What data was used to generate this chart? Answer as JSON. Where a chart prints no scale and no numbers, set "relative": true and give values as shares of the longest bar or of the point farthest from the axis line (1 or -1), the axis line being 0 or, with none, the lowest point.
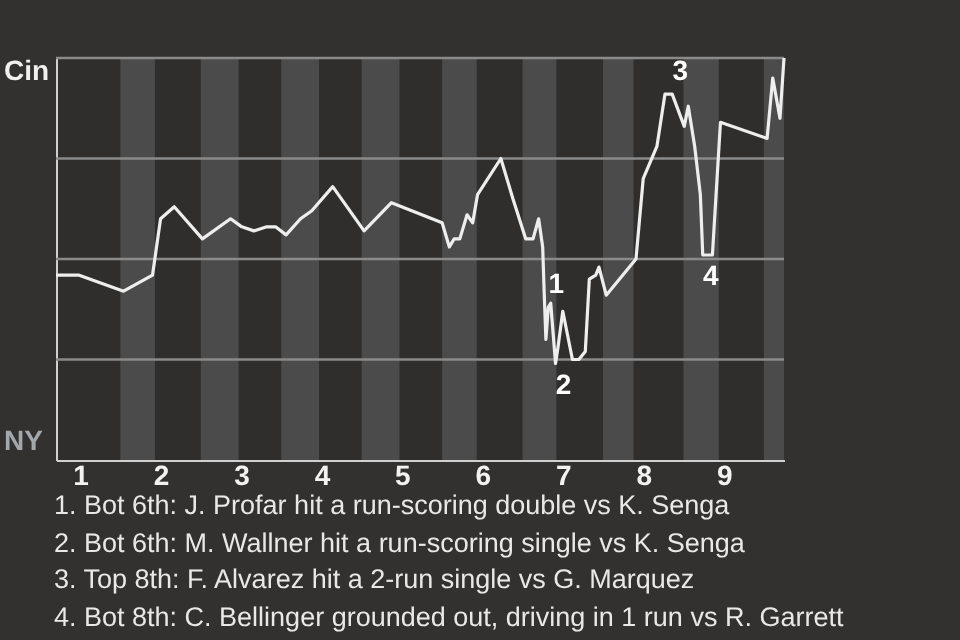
{
  "chart_data": {
    "type": "line",
    "relative": true,
    "x": [
      0.7,
      0.98,
      1.54,
      1.9,
      2.0,
      2.17,
      2.52,
      2.87,
      3.01,
      3.16,
      3.32,
      3.43,
      3.56,
      3.74,
      3.88,
      4.14,
      4.53,
      4.87,
      5.5,
      5.59,
      5.65,
      5.72,
      5.81,
      5.88,
      5.94,
      6.23,
      6.38,
      6.54,
      6.63,
      6.7,
      6.75,
      6.77,
      6.79,
      6.82,
      6.85,
      6.91,
      6.94,
      7.0,
      7.12,
      7.2,
      7.28,
      7.33,
      7.41,
      7.45,
      7.54,
      7.91,
      8.0,
      8.17,
      8.27,
      8.36,
      8.51,
      8.56,
      8.64,
      8.71,
      8.74,
      8.86,
      8.96,
      9.54,
      9.61,
      9.7,
      9.75
    ],
    "series": [
      {
        "color": "#eeeeee",
        "values": [
          0.46,
          0.46,
          0.42,
          0.46,
          0.6,
          0.63,
          0.55,
          0.6,
          0.58,
          0.57,
          0.58,
          0.58,
          0.56,
          0.6,
          0.62,
          0.68,
          0.57,
          0.64,
          0.59,
          0.53,
          0.55,
          0.55,
          0.61,
          0.59,
          0.66,
          0.75,
          0.65,
          0.55,
          0.55,
          0.6,
          0.53,
          0.41,
          0.3,
          0.38,
          0.39,
          0.24,
          0.28,
          0.37,
          0.25,
          0.25,
          0.27,
          0.45,
          0.46,
          0.48,
          0.41,
          0.5,
          0.7,
          0.78,
          0.91,
          0.91,
          0.83,
          0.88,
          0.78,
          0.66,
          0.51,
          0.51,
          0.84,
          0.8,
          0.95,
          0.85,
          1
        ]
      }
    ],
    "xlim": [
      0.7,
      9.75
    ],
    "xticks": [
      1,
      2,
      3,
      4,
      5,
      6,
      7,
      8,
      9
    ],
    "grid": "y",
    "line_style": "solid",
    "bands": [
      {
        "axis": "x",
        "from": 1.5,
        "to": 1.93,
        "color": "#4b4b4b"
      },
      {
        "axis": "x",
        "from": 2.5,
        "to": 2.97,
        "color": "#4b4b4b"
      },
      {
        "axis": "x",
        "from": 3.5,
        "to": 3.97,
        "color": "#4b4b4b"
      },
      {
        "axis": "x",
        "from": 4.5,
        "to": 4.97,
        "color": "#4b4b4b"
      },
      {
        "axis": "x",
        "from": 5.5,
        "to": 5.93,
        "color": "#4b4b4b"
      },
      {
        "axis": "x",
        "from": 6.5,
        "to": 6.92,
        "color": "#4b4b4b"
      },
      {
        "axis": "x",
        "from": 7.5,
        "to": 7.88,
        "color": "#4b4b4b"
      },
      {
        "axis": "x",
        "from": 8.5,
        "to": 8.94,
        "color": "#4b4b4b"
      },
      {
        "axis": "x",
        "from": 9.5,
        "to": 9.75,
        "color": "#4b4b4b"
      }
    ],
    "annotations": [
      "Cin",
      "NY",
      {
        "text": "1",
        "x": 6.82,
        "y": 0.38
      },
      {
        "text": "2",
        "x": 6.91,
        "y": 0.24
      },
      {
        "text": "3",
        "x": 8.36,
        "y": 0.91
      },
      {
        "text": "4",
        "x": 8.74,
        "y": 0.51
      },
      "1. Bot 6th: J. Profar hit a run-scoring double vs K. Senga",
      "2. Bot 6th: M. Wallner hit a run-scoring single vs K. Senga",
      "3. Top 8th: F. Alvarez hit a 2-run single vs G. Marquez",
      "4. Bot 8th: C. Bellinger grounded out, driving in 1 run vs R. Garrett"
    ]
  }
}
